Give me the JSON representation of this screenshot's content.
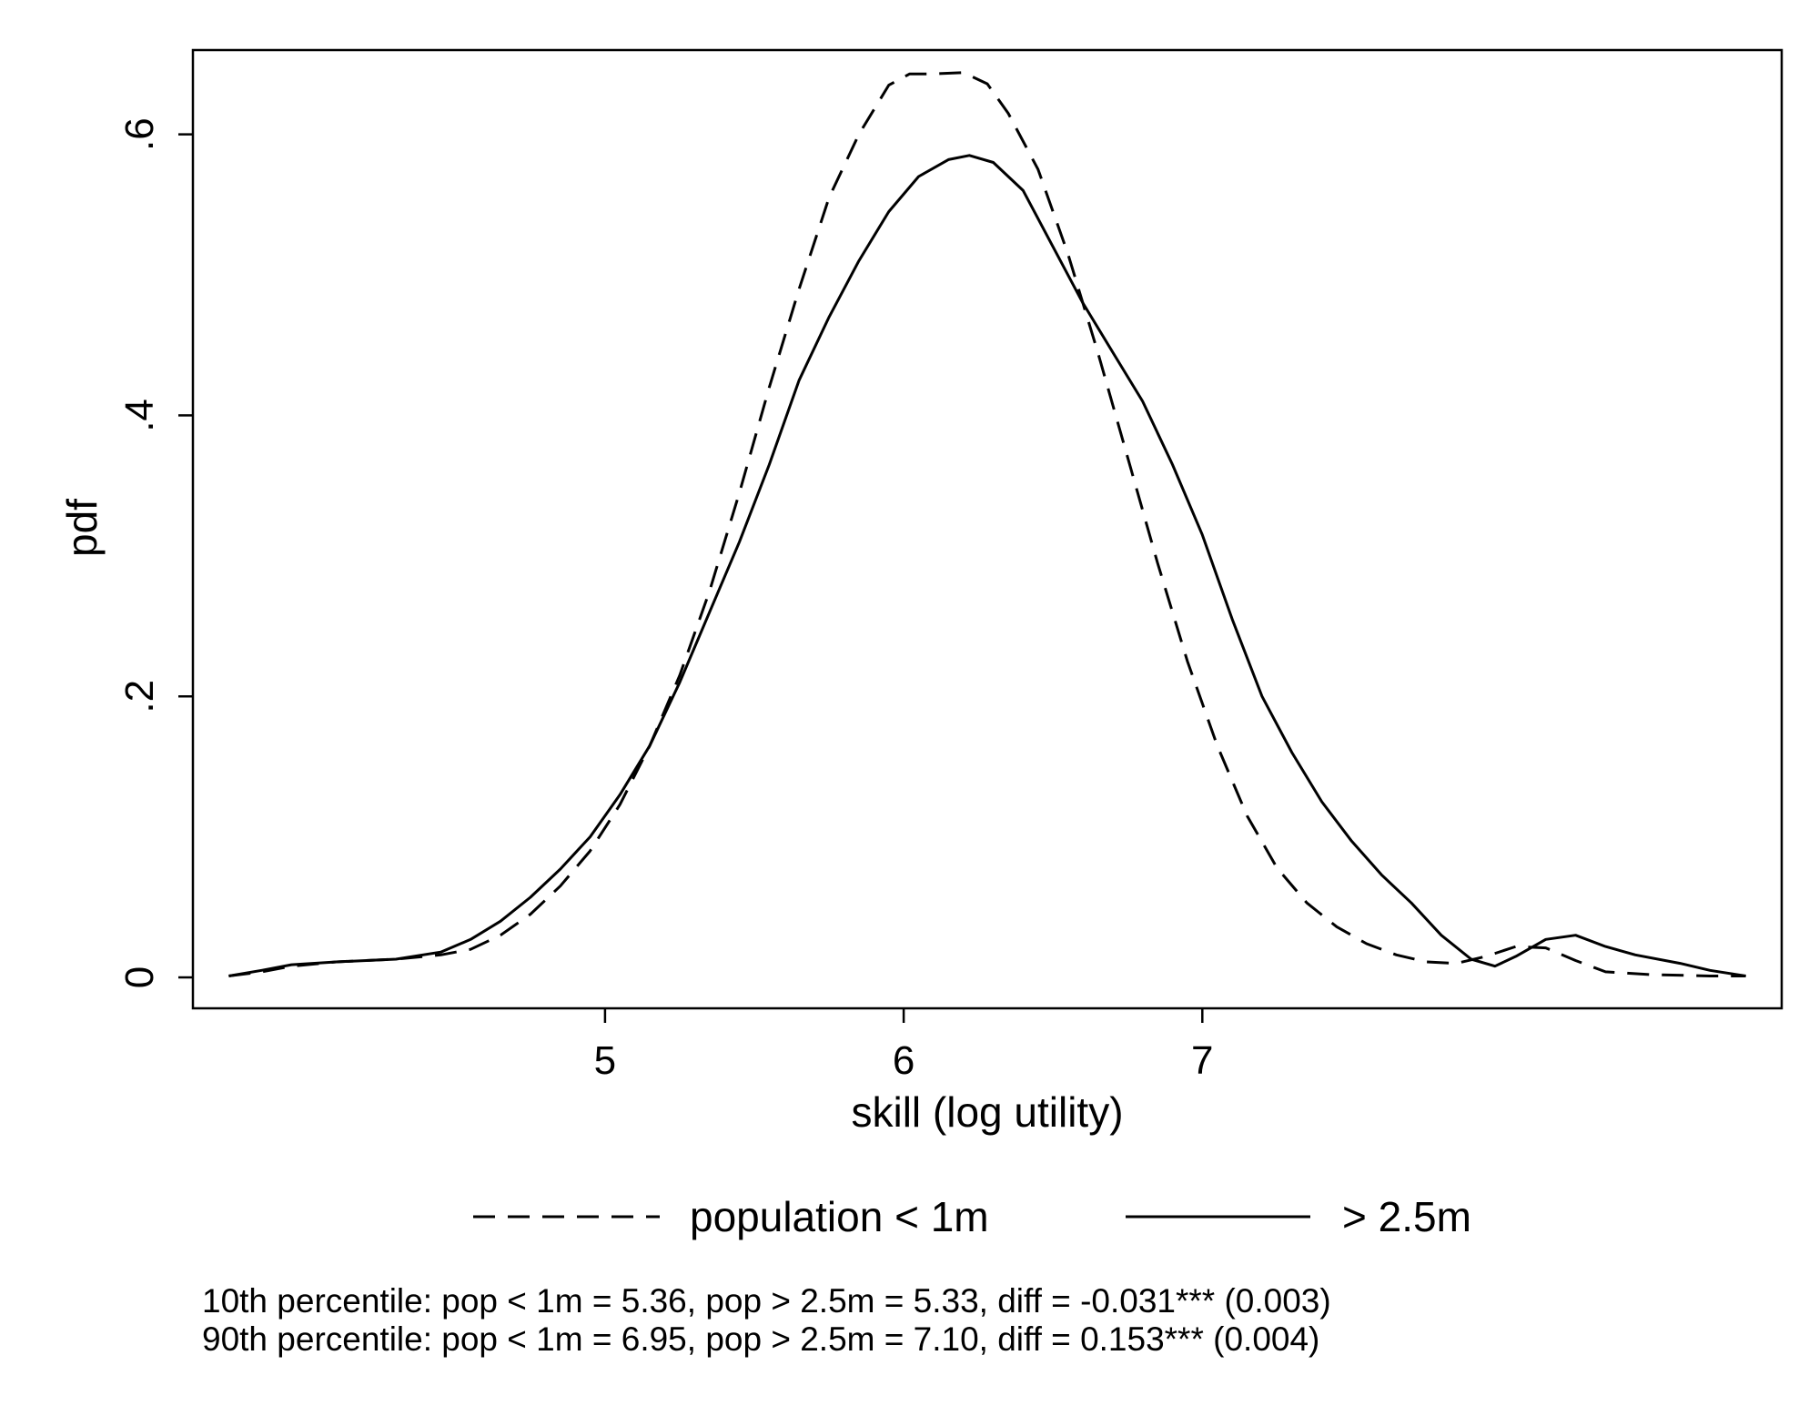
{
  "chart_data": {
    "type": "line",
    "xlabel": "skill (log utility)",
    "ylabel": "pdf",
    "xlim": [
      3.62,
      8.94
    ],
    "ylim": [
      -0.022,
      0.66
    ],
    "xticks": [
      5,
      6,
      7
    ],
    "xtick_labels": [
      "5",
      "6",
      "7"
    ],
    "yticks": [
      0,
      0.2,
      0.4,
      0.6
    ],
    "ytick_labels": [
      "0",
      ".2",
      ".4",
      ".6"
    ],
    "grid": false,
    "legend_position": "bottom",
    "series": [
      {
        "name": "population < 1m",
        "style": "dashed",
        "color": "#000000",
        "points": [
          [
            3.74,
            0.001
          ],
          [
            3.85,
            0.004
          ],
          [
            3.95,
            0.008
          ],
          [
            4.1,
            0.011
          ],
          [
            4.3,
            0.013
          ],
          [
            4.45,
            0.016
          ],
          [
            4.55,
            0.02
          ],
          [
            4.65,
            0.03
          ],
          [
            4.75,
            0.045
          ],
          [
            4.85,
            0.065
          ],
          [
            4.95,
            0.09
          ],
          [
            5.05,
            0.123
          ],
          [
            5.15,
            0.165
          ],
          [
            5.25,
            0.215
          ],
          [
            5.35,
            0.275
          ],
          [
            5.45,
            0.345
          ],
          [
            5.55,
            0.42
          ],
          [
            5.65,
            0.49
          ],
          [
            5.75,
            0.555
          ],
          [
            5.85,
            0.6
          ],
          [
            5.95,
            0.635
          ],
          [
            6.02,
            0.643
          ],
          [
            6.1,
            0.643
          ],
          [
            6.2,
            0.644
          ],
          [
            6.28,
            0.636
          ],
          [
            6.35,
            0.615
          ],
          [
            6.45,
            0.575
          ],
          [
            6.55,
            0.515
          ],
          [
            6.65,
            0.445
          ],
          [
            6.75,
            0.37
          ],
          [
            6.85,
            0.295
          ],
          [
            6.95,
            0.225
          ],
          [
            7.05,
            0.165
          ],
          [
            7.15,
            0.115
          ],
          [
            7.25,
            0.078
          ],
          [
            7.35,
            0.053
          ],
          [
            7.45,
            0.036
          ],
          [
            7.55,
            0.024
          ],
          [
            7.65,
            0.016
          ],
          [
            7.75,
            0.011
          ],
          [
            7.85,
            0.01
          ],
          [
            7.95,
            0.015
          ],
          [
            8.05,
            0.022
          ],
          [
            8.15,
            0.021
          ],
          [
            8.25,
            0.012
          ],
          [
            8.35,
            0.004
          ],
          [
            8.5,
            0.002
          ],
          [
            8.7,
            0.001
          ],
          [
            8.82,
            0.001
          ]
        ]
      },
      {
        "name": "> 2.5m",
        "style": "solid",
        "color": "#000000",
        "points": [
          [
            3.74,
            0.001
          ],
          [
            3.85,
            0.005
          ],
          [
            3.95,
            0.009
          ],
          [
            4.1,
            0.011
          ],
          [
            4.3,
            0.013
          ],
          [
            4.45,
            0.018
          ],
          [
            4.55,
            0.027
          ],
          [
            4.65,
            0.04
          ],
          [
            4.75,
            0.057
          ],
          [
            4.85,
            0.077
          ],
          [
            4.95,
            0.1
          ],
          [
            5.05,
            0.13
          ],
          [
            5.15,
            0.165
          ],
          [
            5.25,
            0.21
          ],
          [
            5.35,
            0.26
          ],
          [
            5.45,
            0.31
          ],
          [
            5.55,
            0.365
          ],
          [
            5.65,
            0.425
          ],
          [
            5.75,
            0.47
          ],
          [
            5.85,
            0.51
          ],
          [
            5.95,
            0.545
          ],
          [
            6.05,
            0.57
          ],
          [
            6.15,
            0.582
          ],
          [
            6.22,
            0.585
          ],
          [
            6.3,
            0.58
          ],
          [
            6.4,
            0.56
          ],
          [
            6.5,
            0.52
          ],
          [
            6.6,
            0.48
          ],
          [
            6.7,
            0.445
          ],
          [
            6.8,
            0.41
          ],
          [
            6.9,
            0.365
          ],
          [
            7.0,
            0.315
          ],
          [
            7.1,
            0.255
          ],
          [
            7.2,
            0.2
          ],
          [
            7.3,
            0.16
          ],
          [
            7.4,
            0.125
          ],
          [
            7.5,
            0.097
          ],
          [
            7.6,
            0.073
          ],
          [
            7.7,
            0.053
          ],
          [
            7.8,
            0.03
          ],
          [
            7.9,
            0.013
          ],
          [
            7.98,
            0.008
          ],
          [
            8.05,
            0.015
          ],
          [
            8.15,
            0.027
          ],
          [
            8.25,
            0.03
          ],
          [
            8.35,
            0.022
          ],
          [
            8.45,
            0.016
          ],
          [
            8.6,
            0.01
          ],
          [
            8.7,
            0.005
          ],
          [
            8.82,
            0.001
          ]
        ]
      }
    ]
  },
  "notes": [
    "10th percentile: pop < 1m = 5.36, pop > 2.5m = 5.33, diff = -0.031*** (0.003)",
    "90th percentile: pop < 1m = 6.95, pop > 2.5m = 7.10, diff = 0.153*** (0.004)"
  ]
}
